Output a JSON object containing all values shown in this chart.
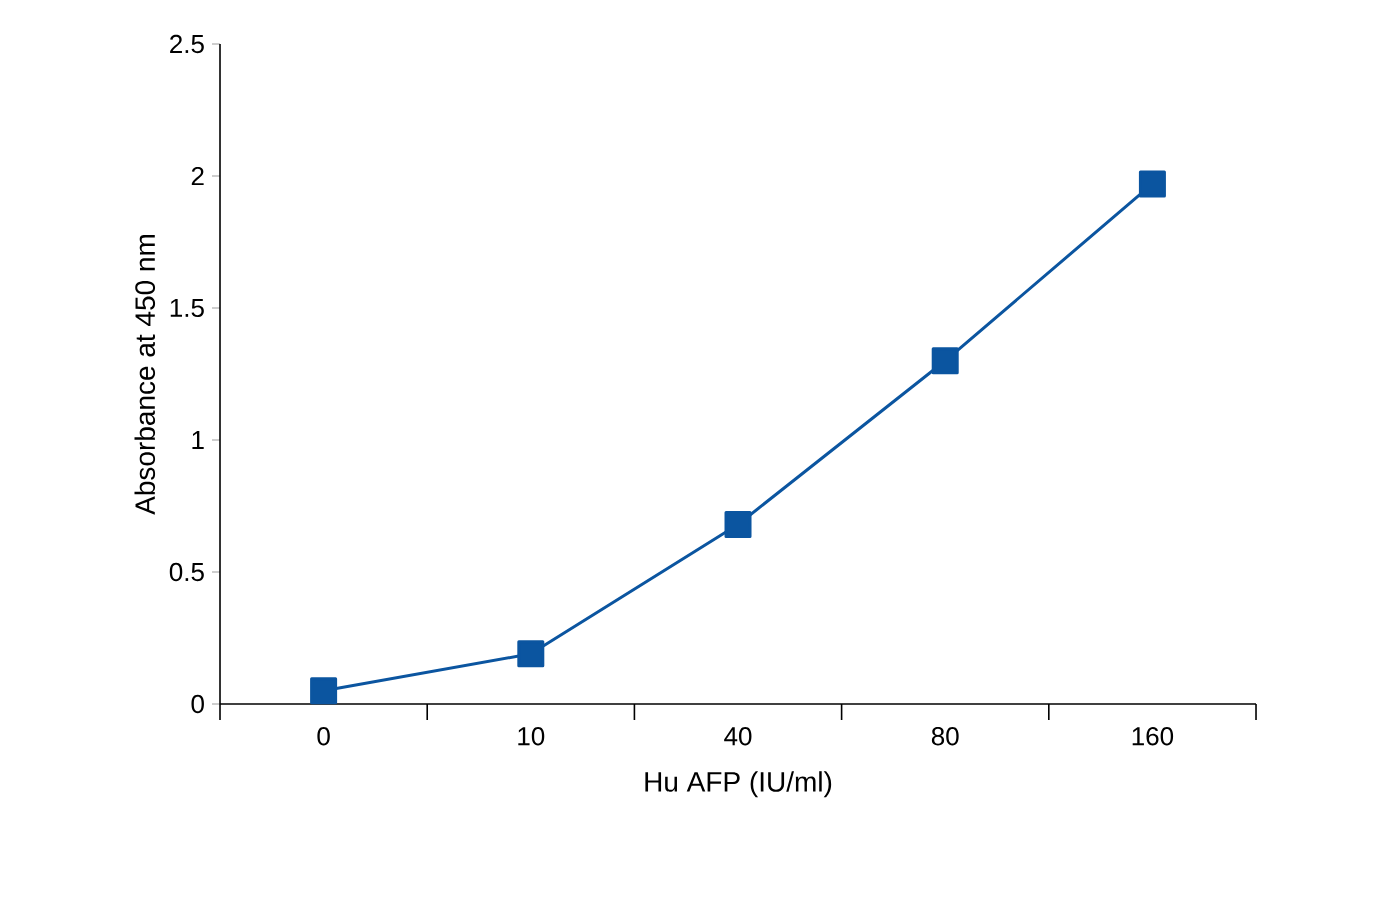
{
  "chart_data": {
    "type": "line",
    "xlabel": "Hu AFP (IU/ml)",
    "ylabel": "Absorbance at 450 nm",
    "categories": [
      "0",
      "10",
      "40",
      "80",
      "160"
    ],
    "series": [
      {
        "color": "#0b55a0",
        "values": [
          0.05,
          0.19,
          0.68,
          1.3,
          1.97
        ]
      }
    ],
    "ylim": [
      0,
      2.5
    ],
    "yticks": [
      0,
      0.5,
      1,
      1.5,
      2,
      2.5
    ],
    "marker": "square",
    "line_style": "solid"
  }
}
